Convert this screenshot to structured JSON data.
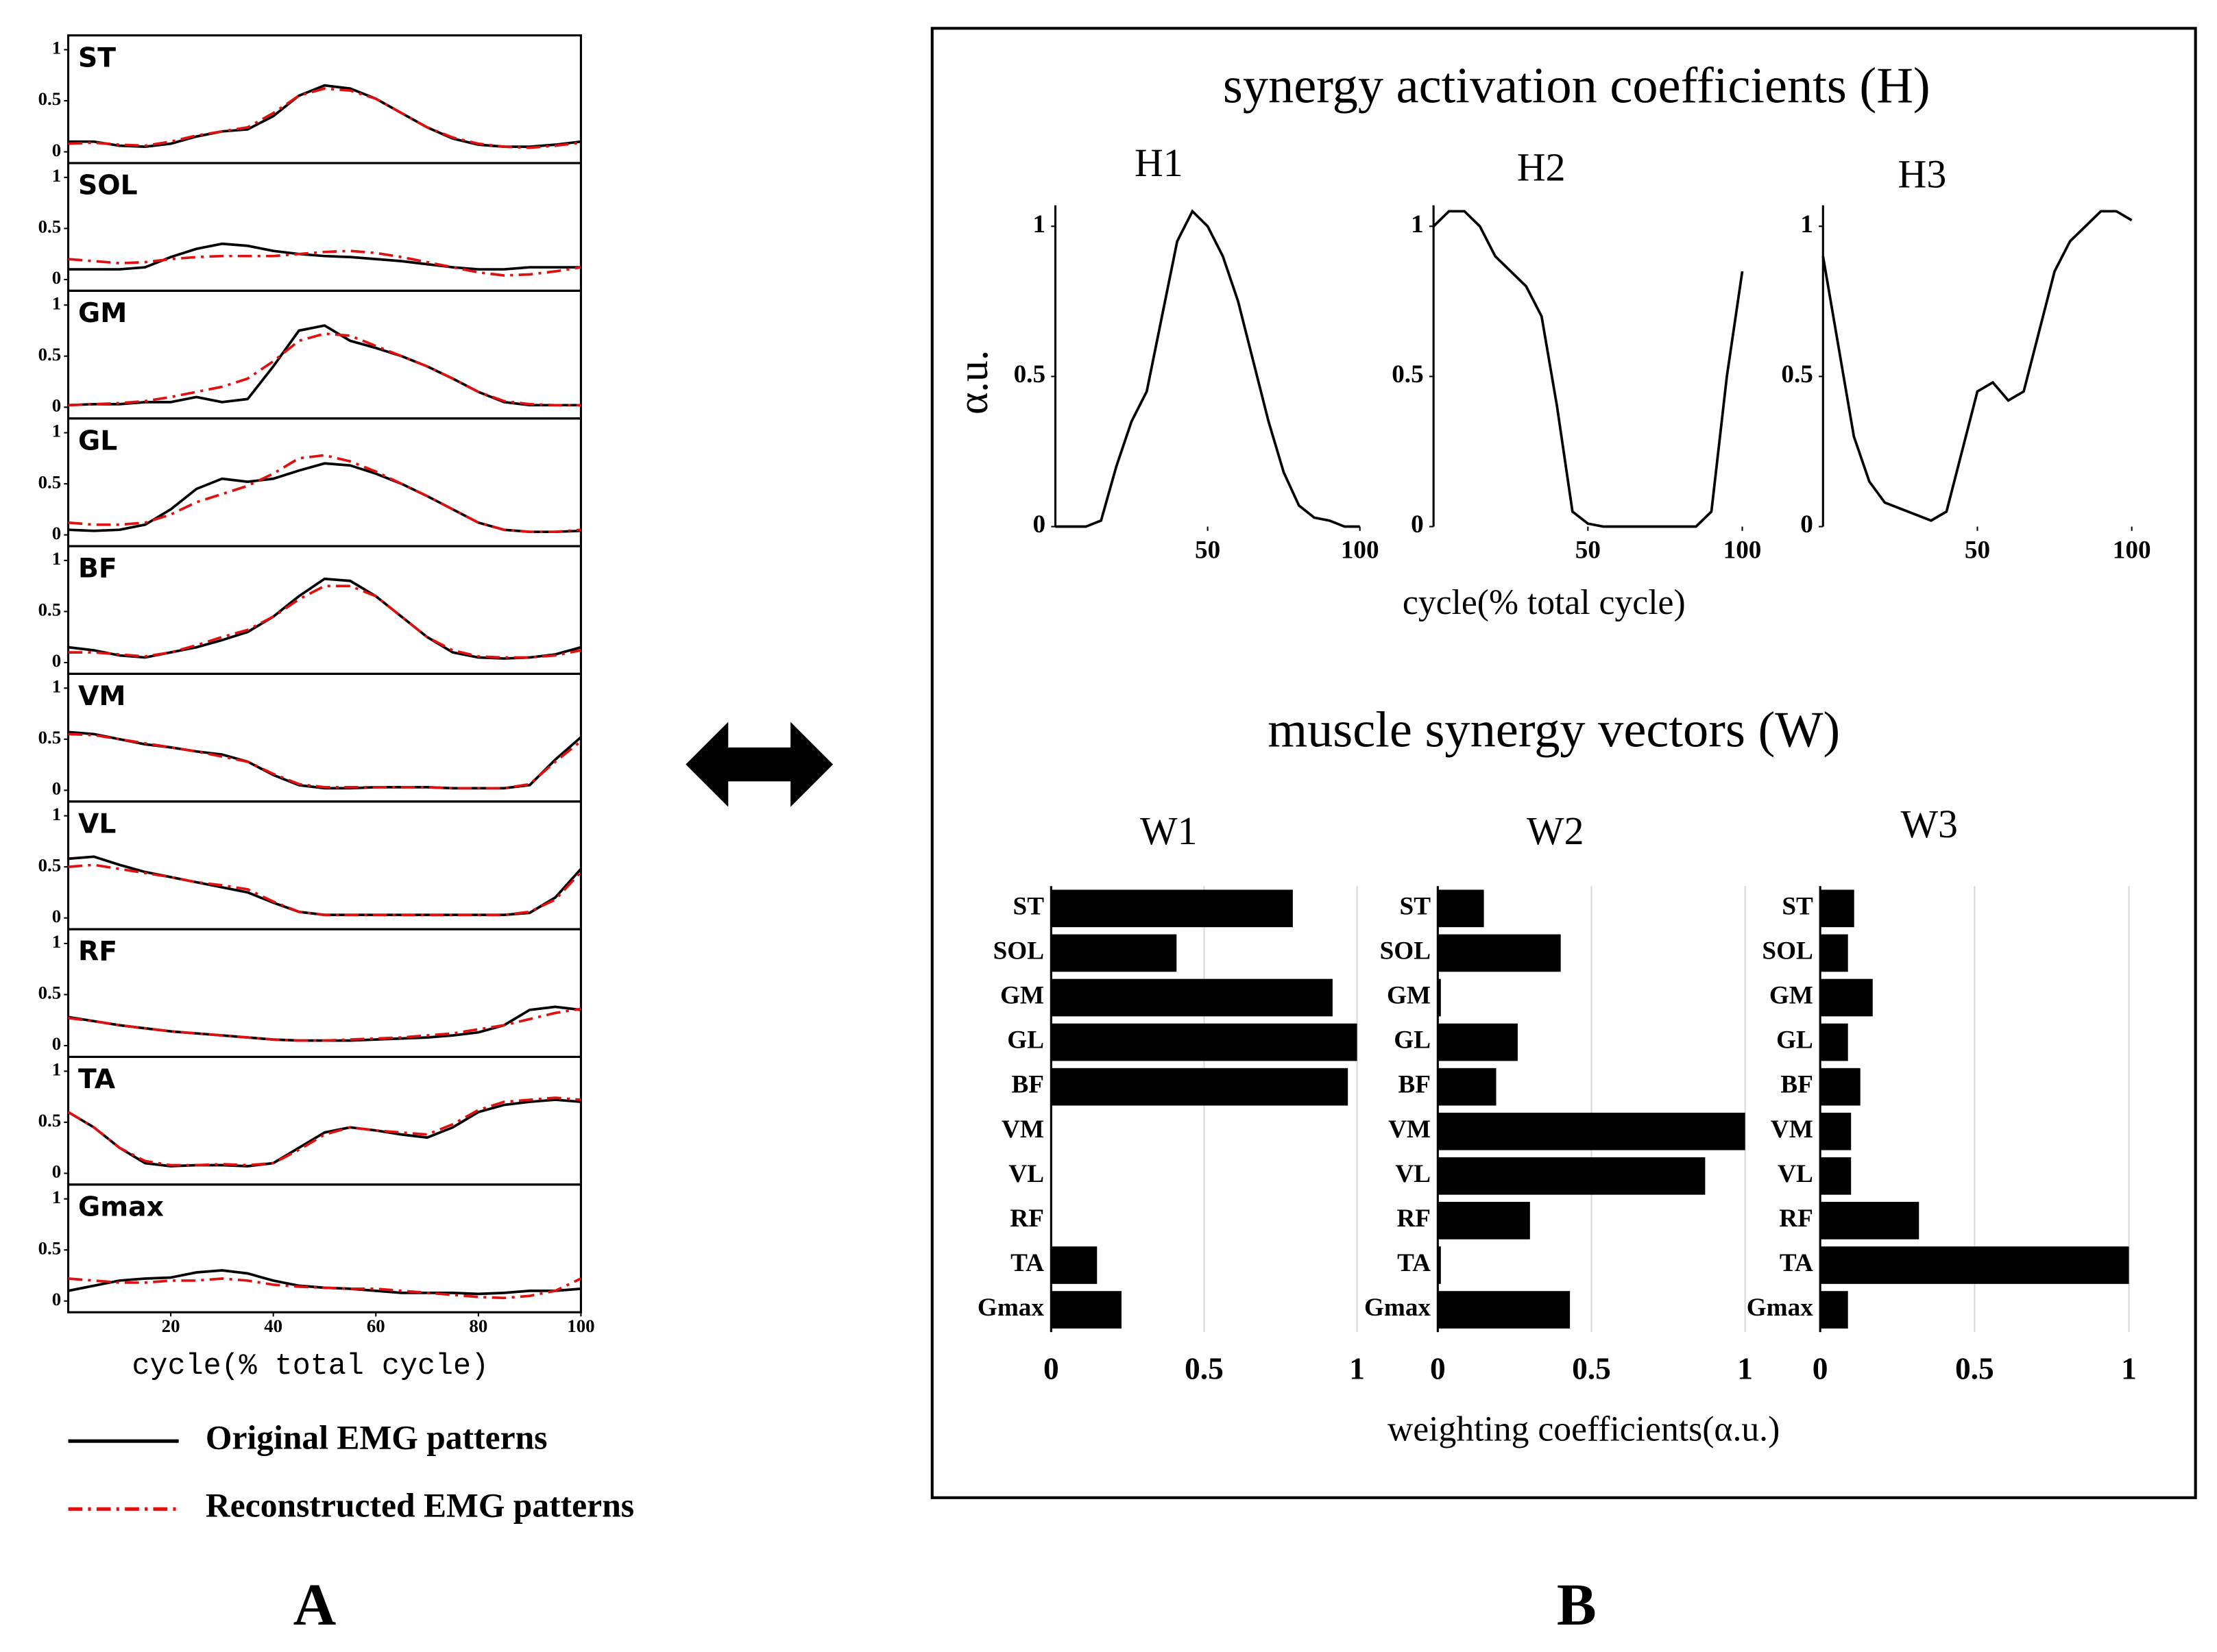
{
  "chart_data": [
    {
      "type": "line",
      "label": "A",
      "panels": [
        "ST",
        "SOL",
        "GM",
        "GL",
        "BF",
        "VM",
        "VL",
        "RF",
        "TA",
        "Gmax"
      ],
      "x": [
        0,
        5,
        10,
        15,
        20,
        25,
        30,
        35,
        40,
        45,
        50,
        55,
        60,
        65,
        70,
        75,
        80,
        85,
        90,
        95,
        100
      ],
      "xlim": [
        0,
        100
      ],
      "xticks": [
        20,
        40,
        60,
        80,
        100
      ],
      "xlabel": "cycle(% total cycle)",
      "ylim": [
        -0.11,
        1.14
      ],
      "yticks": [
        0,
        0.5,
        1
      ],
      "series": [
        {
          "name": "Original EMG patterns",
          "color": "#000000",
          "linestyle": "solid",
          "values": [
            [
              0.1,
              0.1,
              0.06,
              0.05,
              0.08,
              0.15,
              0.2,
              0.22,
              0.35,
              0.55,
              0.65,
              0.62,
              0.52,
              0.38,
              0.24,
              0.13,
              0.07,
              0.05,
              0.05,
              0.07,
              0.1
            ],
            [
              0.1,
              0.1,
              0.1,
              0.12,
              0.22,
              0.3,
              0.35,
              0.33,
              0.28,
              0.25,
              0.23,
              0.22,
              0.2,
              0.18,
              0.15,
              0.12,
              0.1,
              0.1,
              0.12,
              0.12,
              0.12
            ],
            [
              0.02,
              0.03,
              0.03,
              0.05,
              0.05,
              0.1,
              0.05,
              0.08,
              0.4,
              0.75,
              0.8,
              0.65,
              0.58,
              0.5,
              0.4,
              0.28,
              0.15,
              0.05,
              0.02,
              0.02,
              0.02
            ],
            [
              0.05,
              0.04,
              0.05,
              0.1,
              0.25,
              0.45,
              0.55,
              0.52,
              0.55,
              0.63,
              0.7,
              0.68,
              0.6,
              0.5,
              0.38,
              0.25,
              0.12,
              0.05,
              0.03,
              0.03,
              0.04
            ],
            [
              0.15,
              0.12,
              0.07,
              0.05,
              0.1,
              0.15,
              0.22,
              0.3,
              0.45,
              0.65,
              0.82,
              0.8,
              0.65,
              0.45,
              0.25,
              0.1,
              0.05,
              0.04,
              0.05,
              0.08,
              0.15
            ],
            [
              0.57,
              0.55,
              0.5,
              0.45,
              0.42,
              0.38,
              0.35,
              0.28,
              0.15,
              0.05,
              0.02,
              0.02,
              0.03,
              0.03,
              0.03,
              0.02,
              0.02,
              0.02,
              0.05,
              0.3,
              0.52
            ],
            [
              0.58,
              0.6,
              0.52,
              0.45,
              0.4,
              0.35,
              0.3,
              0.25,
              0.15,
              0.06,
              0.03,
              0.03,
              0.03,
              0.03,
              0.03,
              0.03,
              0.03,
              0.03,
              0.05,
              0.2,
              0.48
            ],
            [
              0.28,
              0.24,
              0.2,
              0.17,
              0.14,
              0.12,
              0.1,
              0.08,
              0.06,
              0.05,
              0.05,
              0.05,
              0.06,
              0.07,
              0.08,
              0.1,
              0.13,
              0.2,
              0.35,
              0.38,
              0.35
            ],
            [
              0.6,
              0.45,
              0.25,
              0.1,
              0.07,
              0.08,
              0.08,
              0.07,
              0.1,
              0.25,
              0.4,
              0.45,
              0.42,
              0.38,
              0.35,
              0.45,
              0.6,
              0.67,
              0.7,
              0.72,
              0.7
            ],
            [
              0.1,
              0.15,
              0.2,
              0.22,
              0.23,
              0.28,
              0.3,
              0.27,
              0.2,
              0.15,
              0.13,
              0.12,
              0.1,
              0.08,
              0.08,
              0.08,
              0.07,
              0.08,
              0.1,
              0.1,
              0.12
            ]
          ]
        },
        {
          "name": "Reconstructed EMG patterns",
          "color": "#e01010",
          "linestyle": "dashdot",
          "values": [
            [
              0.08,
              0.09,
              0.07,
              0.06,
              0.1,
              0.16,
              0.2,
              0.24,
              0.38,
              0.55,
              0.62,
              0.6,
              0.52,
              0.38,
              0.24,
              0.14,
              0.08,
              0.05,
              0.04,
              0.06,
              0.09
            ],
            [
              0.2,
              0.18,
              0.16,
              0.17,
              0.2,
              0.22,
              0.23,
              0.23,
              0.23,
              0.25,
              0.27,
              0.28,
              0.26,
              0.22,
              0.17,
              0.12,
              0.07,
              0.04,
              0.05,
              0.08,
              0.12
            ],
            [
              0.02,
              0.03,
              0.04,
              0.06,
              0.1,
              0.15,
              0.2,
              0.28,
              0.45,
              0.65,
              0.72,
              0.7,
              0.6,
              0.5,
              0.4,
              0.28,
              0.15,
              0.06,
              0.03,
              0.02,
              0.02
            ],
            [
              0.12,
              0.1,
              0.1,
              0.12,
              0.2,
              0.32,
              0.4,
              0.48,
              0.6,
              0.75,
              0.78,
              0.72,
              0.62,
              0.5,
              0.38,
              0.25,
              0.12,
              0.05,
              0.03,
              0.03,
              0.05
            ],
            [
              0.1,
              0.1,
              0.08,
              0.06,
              0.1,
              0.17,
              0.25,
              0.32,
              0.45,
              0.62,
              0.75,
              0.75,
              0.65,
              0.45,
              0.25,
              0.12,
              0.06,
              0.05,
              0.05,
              0.07,
              0.12
            ],
            [
              0.55,
              0.54,
              0.5,
              0.46,
              0.42,
              0.38,
              0.33,
              0.28,
              0.16,
              0.06,
              0.03,
              0.03,
              0.03,
              0.03,
              0.03,
              0.02,
              0.02,
              0.02,
              0.06,
              0.28,
              0.48
            ],
            [
              0.5,
              0.52,
              0.48,
              0.44,
              0.4,
              0.35,
              0.32,
              0.28,
              0.16,
              0.06,
              0.03,
              0.03,
              0.03,
              0.03,
              0.03,
              0.03,
              0.03,
              0.03,
              0.06,
              0.18,
              0.45
            ],
            [
              0.27,
              0.24,
              0.2,
              0.17,
              0.14,
              0.12,
              0.1,
              0.08,
              0.06,
              0.05,
              0.05,
              0.06,
              0.07,
              0.08,
              0.1,
              0.12,
              0.16,
              0.2,
              0.26,
              0.32,
              0.36
            ],
            [
              0.6,
              0.45,
              0.25,
              0.12,
              0.08,
              0.08,
              0.09,
              0.08,
              0.1,
              0.23,
              0.38,
              0.45,
              0.42,
              0.4,
              0.38,
              0.48,
              0.62,
              0.7,
              0.72,
              0.74,
              0.72
            ],
            [
              0.22,
              0.2,
              0.18,
              0.18,
              0.2,
              0.2,
              0.22,
              0.2,
              0.16,
              0.14,
              0.13,
              0.12,
              0.12,
              0.1,
              0.08,
              0.06,
              0.04,
              0.03,
              0.05,
              0.1,
              0.22
            ]
          ]
        }
      ]
    },
    {
      "type": "line",
      "label": "B",
      "title": "synergy activation coefficients (H)",
      "panels": [
        "H1",
        "H2",
        "H3"
      ],
      "x": [
        0,
        5,
        10,
        15,
        20,
        25,
        30,
        35,
        40,
        45,
        50,
        55,
        60,
        65,
        70,
        75,
        80,
        85,
        90,
        95,
        100
      ],
      "xlim": [
        0,
        100
      ],
      "xticks": [
        50,
        100
      ],
      "xlabel": "cycle(% total cycle)",
      "ylabel": "α.u.",
      "ylim": [
        0,
        1.07
      ],
      "yticks": [
        0,
        0.5,
        1
      ],
      "series": [
        {
          "color": "#000000",
          "linestyle": "solid",
          "values": [
            [
              0,
              0,
              0,
              0.02,
              0.2,
              0.35,
              0.45,
              0.7,
              0.95,
              1.05,
              1.0,
              0.9,
              0.75,
              0.55,
              0.35,
              0.18,
              0.07,
              0.03,
              0.02,
              0,
              0
            ],
            [
              1.0,
              1.05,
              1.05,
              1.0,
              0.9,
              0.85,
              0.8,
              0.7,
              0.4,
              0.05,
              0.01,
              0,
              0,
              0,
              0,
              0,
              0,
              0,
              0.05,
              0.5,
              0.85
            ],
            [
              0.9,
              0.6,
              0.3,
              0.15,
              0.08,
              0.06,
              0.04,
              0.02,
              0.05,
              0.25,
              0.45,
              0.48,
              0.42,
              0.45,
              0.65,
              0.85,
              0.95,
              1.0,
              1.05,
              1.05,
              1.02
            ]
          ]
        }
      ]
    },
    {
      "type": "barh",
      "title": "muscle synergy vectors (W)",
      "panels": [
        "W1",
        "W2",
        "W3"
      ],
      "categories": [
        "ST",
        "SOL",
        "GM",
        "GL",
        "BF",
        "VM",
        "VL",
        "RF",
        "TA",
        "Gmax"
      ],
      "values": [
        [
          0.79,
          0.41,
          0.92,
          1.0,
          0.97,
          0,
          0,
          0,
          0.15,
          0.23
        ],
        [
          0.15,
          0.4,
          0.01,
          0.26,
          0.19,
          1.0,
          0.87,
          0.3,
          0.01,
          0.43
        ],
        [
          0.11,
          0.09,
          0.17,
          0.09,
          0.13,
          0.1,
          0.1,
          0.32,
          1.0,
          0.09
        ]
      ],
      "color": "#000000",
      "grid": true,
      "xlim": [
        0,
        1
      ],
      "xticks": [
        0,
        0.5,
        1
      ],
      "xlabel": "weighting coefficients(α.u.)"
    }
  ]
}
